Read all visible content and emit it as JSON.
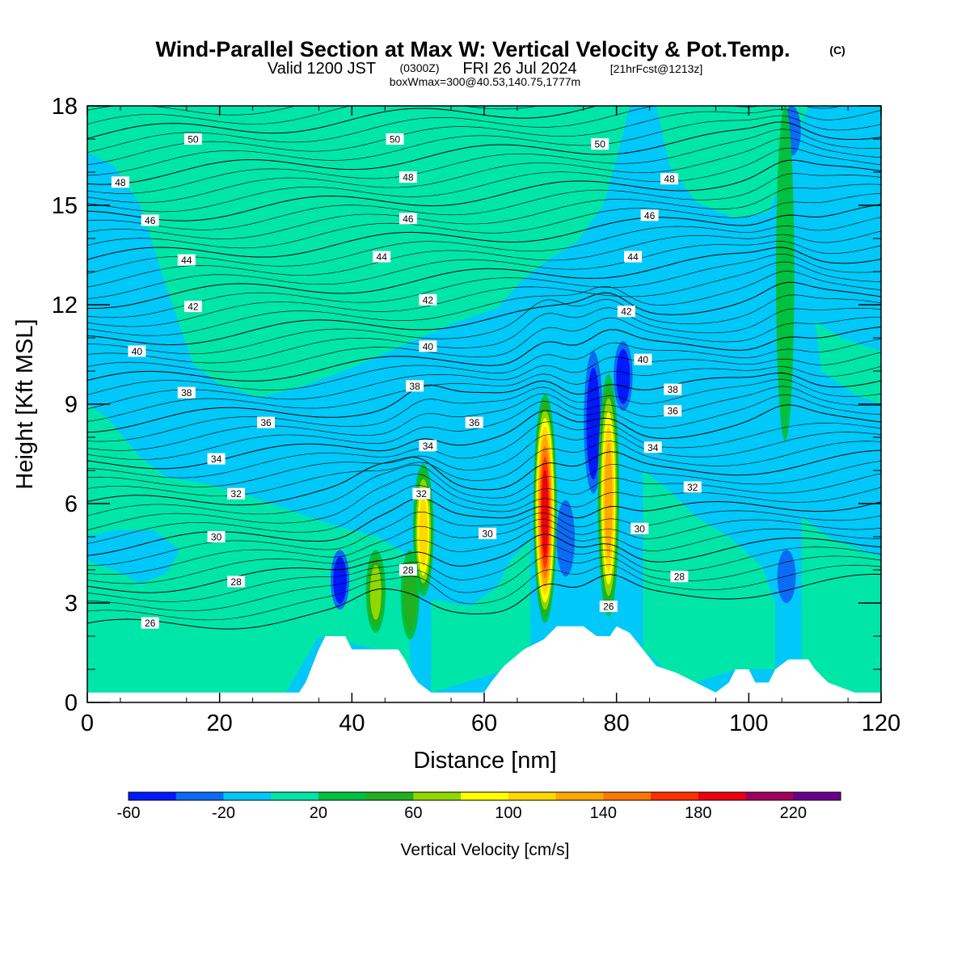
{
  "title": {
    "main": "Wind-Parallel Section at Max W: Vertical Velocity & Pot.Temp.",
    "copyright": "(C)",
    "valid_prefix": "Valid 1200 JST",
    "valid_utc": "(0300Z)",
    "valid_date": "FRI 26 Jul 2024",
    "forecast": "[21hrFcst@1213z]",
    "box": "boxWmax=300@40.53,140.75,1777m"
  },
  "chart_data": {
    "type": "heatmap",
    "xlabel": "Distance [nm]",
    "ylabel": "Height [Kft MSL]",
    "xlim": [
      0,
      120
    ],
    "ylim": [
      0,
      18
    ],
    "x_ticks": [
      "0",
      "20",
      "40",
      "60",
      "80",
      "100",
      "120"
    ],
    "y_ticks": [
      "0",
      "3",
      "6",
      "9",
      "12",
      "15",
      "18"
    ],
    "colorbar": {
      "label": "Vertical Velocity [cm/s]",
      "levels": [
        -60,
        -40,
        -20,
        0,
        20,
        40,
        60,
        80,
        100,
        120,
        140,
        160,
        180,
        200,
        220,
        240
      ],
      "tick_labels": [
        "-60",
        "-20",
        "20",
        "60",
        "100",
        "140",
        "180",
        "220"
      ],
      "colors": [
        "#0019ff",
        "#0a6cf5",
        "#00c8f8",
        "#00e6a8",
        "#00c040",
        "#20b020",
        "#90d800",
        "#ffff00",
        "#ffd800",
        "#ffa800",
        "#ff7800",
        "#ff3000",
        "#ee0010",
        "#a0005a",
        "#6a008a"
      ]
    },
    "updrafts": [
      {
        "x": 69.2,
        "z_base": 2.4,
        "z_top": 9.3,
        "w_max": 190
      },
      {
        "x": 78.8,
        "z_base": 2.6,
        "z_top": 9.9,
        "w_max": 130
      },
      {
        "x": 50.8,
        "z_base": 3.2,
        "z_top": 7.2,
        "w_max": 110
      },
      {
        "x": 43.6,
        "z_base": 2.1,
        "z_top": 4.6,
        "w_max": 80
      },
      {
        "x": 48.8,
        "z_base": 1.9,
        "z_top": 4.6,
        "w_max": 45
      },
      {
        "x": 105.5,
        "z_base": 7.9,
        "z_top": 18.0,
        "w_max": 35
      }
    ],
    "downdrafts": [
      {
        "x": 38.2,
        "z_base": 2.8,
        "z_top": 4.6,
        "w_min": -45
      },
      {
        "x": 76.5,
        "z_base": 6.3,
        "z_top": 10.6,
        "w_min": -55
      },
      {
        "x": 81.0,
        "z_base": 8.8,
        "z_top": 10.9,
        "w_min": -55
      },
      {
        "x": 72.3,
        "z_base": 3.8,
        "z_top": 6.1,
        "w_min": -40
      },
      {
        "x": 105.7,
        "z_base": 3.0,
        "z_top": 4.6,
        "w_min": -40
      },
      {
        "x": 106.5,
        "z_base": 16.5,
        "z_top": 18.0,
        "w_min": -35
      }
    ],
    "pot_temp_levels": [
      26,
      28,
      30,
      32,
      34,
      36,
      38,
      40,
      42,
      44,
      46,
      48,
      50
    ],
    "pot_temp_labels": [
      {
        "value": "26",
        "x": 9.5,
        "z": 2.4
      },
      {
        "value": "26",
        "x": 78.8,
        "z": 2.9
      },
      {
        "value": "28",
        "x": 22.5,
        "z": 3.65
      },
      {
        "value": "28",
        "x": 48.5,
        "z": 4.0
      },
      {
        "value": "28",
        "x": 89.5,
        "z": 3.8
      },
      {
        "value": "30",
        "x": 19.5,
        "z": 5.0
      },
      {
        "value": "30",
        "x": 60.5,
        "z": 5.1
      },
      {
        "value": "30",
        "x": 83.5,
        "z": 5.25
      },
      {
        "value": "32",
        "x": 22.5,
        "z": 6.3
      },
      {
        "value": "32",
        "x": 50.5,
        "z": 6.3
      },
      {
        "value": "32",
        "x": 91.5,
        "z": 6.5
      },
      {
        "value": "34",
        "x": 19.5,
        "z": 7.35
      },
      {
        "value": "34",
        "x": 51.5,
        "z": 7.75
      },
      {
        "value": "34",
        "x": 85.5,
        "z": 7.7
      },
      {
        "value": "36",
        "x": 27.0,
        "z": 8.45
      },
      {
        "value": "36",
        "x": 58.5,
        "z": 8.45
      },
      {
        "value": "36",
        "x": 88.5,
        "z": 8.8
      },
      {
        "value": "38",
        "x": 15.0,
        "z": 9.35
      },
      {
        "value": "38",
        "x": 49.5,
        "z": 9.55
      },
      {
        "value": "38",
        "x": 88.5,
        "z": 9.45
      },
      {
        "value": "40",
        "x": 7.5,
        "z": 10.6
      },
      {
        "value": "40",
        "x": 51.5,
        "z": 10.75
      },
      {
        "value": "40",
        "x": 84.0,
        "z": 10.35
      },
      {
        "value": "42",
        "x": 16.0,
        "z": 11.95
      },
      {
        "value": "42",
        "x": 51.5,
        "z": 12.15
      },
      {
        "value": "42",
        "x": 81.5,
        "z": 11.8
      },
      {
        "value": "44",
        "x": 15.0,
        "z": 13.35
      },
      {
        "value": "44",
        "x": 44.5,
        "z": 13.45
      },
      {
        "value": "44",
        "x": 82.5,
        "z": 13.45
      },
      {
        "value": "46",
        "x": 9.5,
        "z": 14.55
      },
      {
        "value": "46",
        "x": 48.5,
        "z": 14.6
      },
      {
        "value": "46",
        "x": 85.0,
        "z": 14.7
      },
      {
        "value": "48",
        "x": 5.0,
        "z": 15.7
      },
      {
        "value": "48",
        "x": 48.5,
        "z": 15.85
      },
      {
        "value": "48",
        "x": 88.0,
        "z": 15.8
      },
      {
        "value": "50",
        "x": 16.0,
        "z": 17.0
      },
      {
        "value": "50",
        "x": 46.5,
        "z": 17.0
      },
      {
        "value": "50",
        "x": 77.5,
        "z": 16.85
      }
    ],
    "terrain": [
      [
        0,
        0.3
      ],
      [
        30,
        0.3
      ],
      [
        32,
        0.3
      ],
      [
        33,
        0.6
      ],
      [
        34,
        1.1
      ],
      [
        35,
        1.6
      ],
      [
        36,
        2.0
      ],
      [
        39,
        2.0
      ],
      [
        40,
        1.6
      ],
      [
        44,
        1.6
      ],
      [
        45,
        1.6
      ],
      [
        47,
        1.6
      ],
      [
        48,
        1.3
      ],
      [
        49,
        0.9
      ],
      [
        50,
        0.6
      ],
      [
        52,
        0.3
      ],
      [
        60,
        0.3
      ],
      [
        61,
        0.6
      ],
      [
        63,
        1.1
      ],
      [
        66,
        1.6
      ],
      [
        69,
        1.9
      ],
      [
        71,
        2.3
      ],
      [
        75,
        2.3
      ],
      [
        77,
        2.0
      ],
      [
        79,
        2.0
      ],
      [
        80,
        2.3
      ],
      [
        82,
        2.1
      ],
      [
        84,
        1.6
      ],
      [
        86,
        1.1
      ],
      [
        89,
        0.9
      ],
      [
        92,
        0.6
      ],
      [
        95,
        0.3
      ],
      [
        97,
        0.6
      ],
      [
        98,
        1.0
      ],
      [
        100,
        1.0
      ],
      [
        101,
        0.6
      ],
      [
        103,
        0.6
      ],
      [
        104,
        1.0
      ],
      [
        106,
        1.3
      ],
      [
        109,
        1.3
      ],
      [
        110,
        1.0
      ],
      [
        112,
        0.6
      ],
      [
        116,
        0.3
      ],
      [
        120,
        0.3
      ]
    ]
  }
}
